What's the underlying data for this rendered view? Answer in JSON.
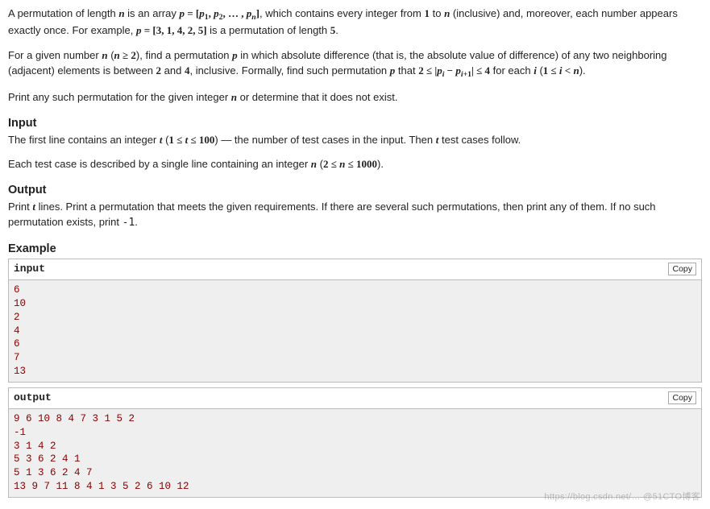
{
  "para1_a": "A permutation of length ",
  "para1_b": " is an array ",
  "para1_c": ", which contains every integer from ",
  "para1_d": " to ",
  "para1_e": " (inclusive) and, moreover, each number appears exactly once. For example, ",
  "para1_f": " is a permutation of length ",
  "para1_g": ".",
  "para2_a": "For a given number ",
  "para2_b": " (",
  "para2_c": "), find a permutation ",
  "para2_d": " in which absolute difference (that is, the absolute value of difference) of any two neighboring (adjacent) elements is between ",
  "para2_e": " and ",
  "para2_f": ", inclusive. Formally, find such permutation ",
  "para2_g": " that ",
  "para2_h": " for each ",
  "para2_i": " (",
  "para2_j": ").",
  "para3": "Print any such permutation for the given integer ",
  "para3_b": " or determine that it does not exist.",
  "input_title": "Input",
  "input_p1_a": "The first line contains an integer ",
  "input_p1_b": " (",
  "input_p1_c": ") — the number of test cases in the input. Then ",
  "input_p1_d": " test cases follow.",
  "input_p2_a": "Each test case is described by a single line containing an integer ",
  "input_p2_b": " (",
  "input_p2_c": ").",
  "output_title": "Output",
  "output_p1_a": "Print ",
  "output_p1_b": " lines. Print a permutation that meets the given requirements. If there are several such permutations, then print any of them. If no such permutation exists, print ",
  "output_p1_c": ".",
  "example_title": "Example",
  "input_label": "input",
  "output_label": "output",
  "copy_label": "Copy",
  "sample_input": "6\n10\n2\n4\n6\n7\n13",
  "sample_output": "9 6 10 8 4 7 3 1 5 2\n-1\n3 1 4 2\n5 3 6 2 4 1\n5 1 3 6 2 4 7\n13 9 7 11 8 4 1 3 5 2 6 10 12",
  "m_n": "n",
  "m_p": "p",
  "m_t": "t",
  "m_i": "i",
  "m_1": "1",
  "m_2": "2",
  "m_4": "4",
  "m_5": "5",
  "m_minus1": "-1",
  "m_p_def": "p = [p₁, p₂, … , pₙ]",
  "m_p_ex": "p = [3, 1, 4, 2, 5]",
  "m_nge2": "n ≥ 2",
  "m_diff": "2 ≤ |pᵢ − pᵢ₊₁| ≤ 4",
  "m_irange": "1 ≤ i < n",
  "m_trange": "1 ≤ t ≤ 100",
  "m_nrange": "2 ≤ n ≤ 1000",
  "watermark": "https://blog.csdn.net/…  @51CTO博客"
}
